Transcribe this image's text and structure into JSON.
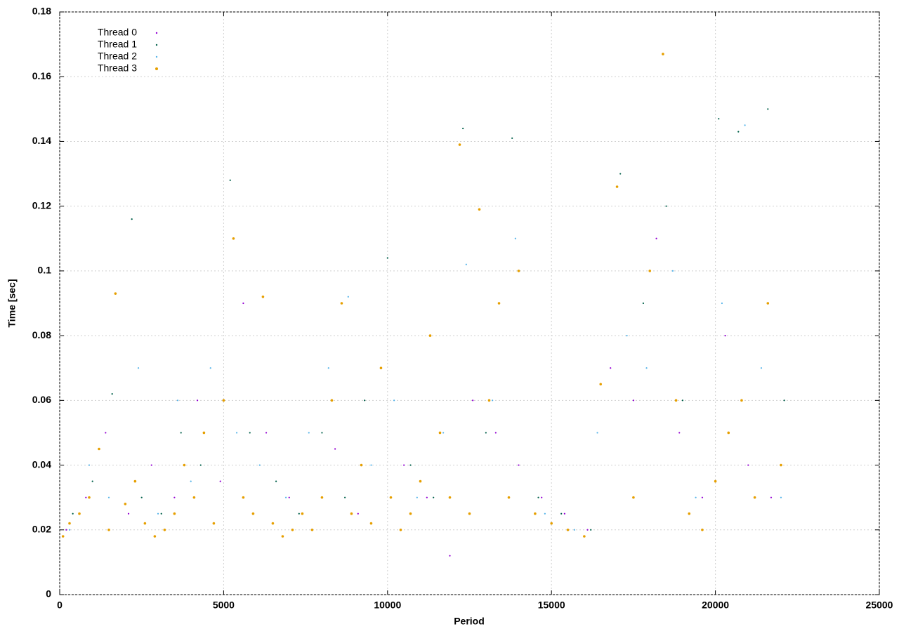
{
  "chart_data": {
    "type": "scatter",
    "x_label": "Period",
    "y_label": "Time [sec]",
    "xlim": [
      0,
      25000
    ],
    "xticks": [
      0,
      5000,
      10000,
      15000,
      20000,
      25000
    ],
    "ylim": [
      0,
      0.18
    ],
    "yticks": [
      0,
      0.02,
      0.04,
      0.06,
      0.08,
      0.1,
      0.12,
      0.14,
      0.16,
      0.18
    ],
    "grid": true,
    "legend": "top-left",
    "series": [
      {
        "name": "Thread 0",
        "color": "#9400d3",
        "x": [
          200,
          800,
          1400,
          2100,
          2800,
          3500,
          4200,
          4900,
          5600,
          6300,
          7000,
          7700,
          8400,
          9100,
          9800,
          10500,
          11200,
          11900,
          12600,
          13300,
          14000,
          14700,
          15400,
          16100,
          16800,
          17500,
          18200,
          18900,
          19600,
          20300,
          21000,
          21700
        ],
        "values": [
          0.02,
          0.03,
          0.05,
          0.025,
          0.04,
          0.03,
          0.06,
          0.035,
          0.09,
          0.05,
          0.03,
          0.02,
          0.045,
          0.025,
          0.07,
          0.04,
          0.03,
          0.012,
          0.06,
          0.05,
          0.04,
          0.03,
          0.025,
          0.02,
          0.07,
          0.06,
          0.11,
          0.05,
          0.03,
          0.08,
          0.04,
          0.03
        ]
      },
      {
        "name": "Thread 1",
        "color": "#00604a",
        "x": [
          400,
          1000,
          1600,
          2200,
          2500,
          3100,
          3700,
          4300,
          5200,
          5800,
          6600,
          7300,
          8000,
          8700,
          9300,
          10000,
          10700,
          11400,
          12300,
          13000,
          13800,
          14600,
          15300,
          16200,
          17100,
          17800,
          18500,
          19000,
          20100,
          20700,
          21600,
          22100
        ],
        "values": [
          0.025,
          0.035,
          0.062,
          0.116,
          0.03,
          0.025,
          0.05,
          0.04,
          0.128,
          0.05,
          0.035,
          0.025,
          0.05,
          0.03,
          0.06,
          0.104,
          0.04,
          0.03,
          0.144,
          0.05,
          0.141,
          0.03,
          0.025,
          0.02,
          0.13,
          0.09,
          0.12,
          0.06,
          0.147,
          0.143,
          0.15,
          0.06
        ]
      },
      {
        "name": "Thread 2",
        "color": "#56b4e9",
        "x": [
          300,
          900,
          1500,
          2400,
          3000,
          3600,
          4000,
          4600,
          5400,
          6100,
          6900,
          7600,
          8200,
          8800,
          9500,
          10200,
          10900,
          11700,
          12400,
          13200,
          13900,
          14800,
          15700,
          16400,
          17300,
          17900,
          18700,
          19400,
          20200,
          20900,
          21400,
          22000
        ],
        "values": [
          0.02,
          0.04,
          0.03,
          0.07,
          0.025,
          0.06,
          0.035,
          0.07,
          0.05,
          0.04,
          0.03,
          0.05,
          0.07,
          0.092,
          0.04,
          0.06,
          0.03,
          0.05,
          0.102,
          0.06,
          0.11,
          0.025,
          0.02,
          0.05,
          0.08,
          0.07,
          0.1,
          0.03,
          0.09,
          0.145,
          0.07,
          0.03
        ]
      },
      {
        "name": "Thread 3",
        "color": "#e69f00",
        "x": [
          100,
          300,
          600,
          900,
          1200,
          1500,
          1700,
          2000,
          2300,
          2600,
          2900,
          3200,
          3500,
          3800,
          4100,
          4400,
          4700,
          5000,
          5300,
          5600,
          5900,
          6200,
          6500,
          6800,
          7100,
          7400,
          7700,
          8000,
          8300,
          8600,
          8900,
          9200,
          9500,
          9800,
          10100,
          10400,
          10700,
          11000,
          11300,
          11600,
          11900,
          12200,
          12500,
          12800,
          13100,
          13400,
          13700,
          14000,
          14500,
          15000,
          15500,
          16000,
          16500,
          17000,
          17500,
          18000,
          18400,
          18800,
          19200,
          19600,
          20000,
          20400,
          20800,
          21200,
          21600,
          22000
        ],
        "values": [
          0.018,
          0.022,
          0.025,
          0.03,
          0.045,
          0.02,
          0.093,
          0.028,
          0.035,
          0.022,
          0.018,
          0.02,
          0.025,
          0.04,
          0.03,
          0.05,
          0.022,
          0.06,
          0.11,
          0.03,
          0.025,
          0.092,
          0.022,
          0.018,
          0.02,
          0.025,
          0.02,
          0.03,
          0.06,
          0.09,
          0.025,
          0.04,
          0.022,
          0.07,
          0.03,
          0.02,
          0.025,
          0.035,
          0.08,
          0.05,
          0.03,
          0.139,
          0.025,
          0.119,
          0.06,
          0.09,
          0.03,
          0.1,
          0.025,
          0.022,
          0.02,
          0.018,
          0.065,
          0.126,
          0.03,
          0.1,
          0.167,
          0.06,
          0.025,
          0.02,
          0.035,
          0.05,
          0.06,
          0.03,
          0.09,
          0.04
        ]
      }
    ]
  }
}
